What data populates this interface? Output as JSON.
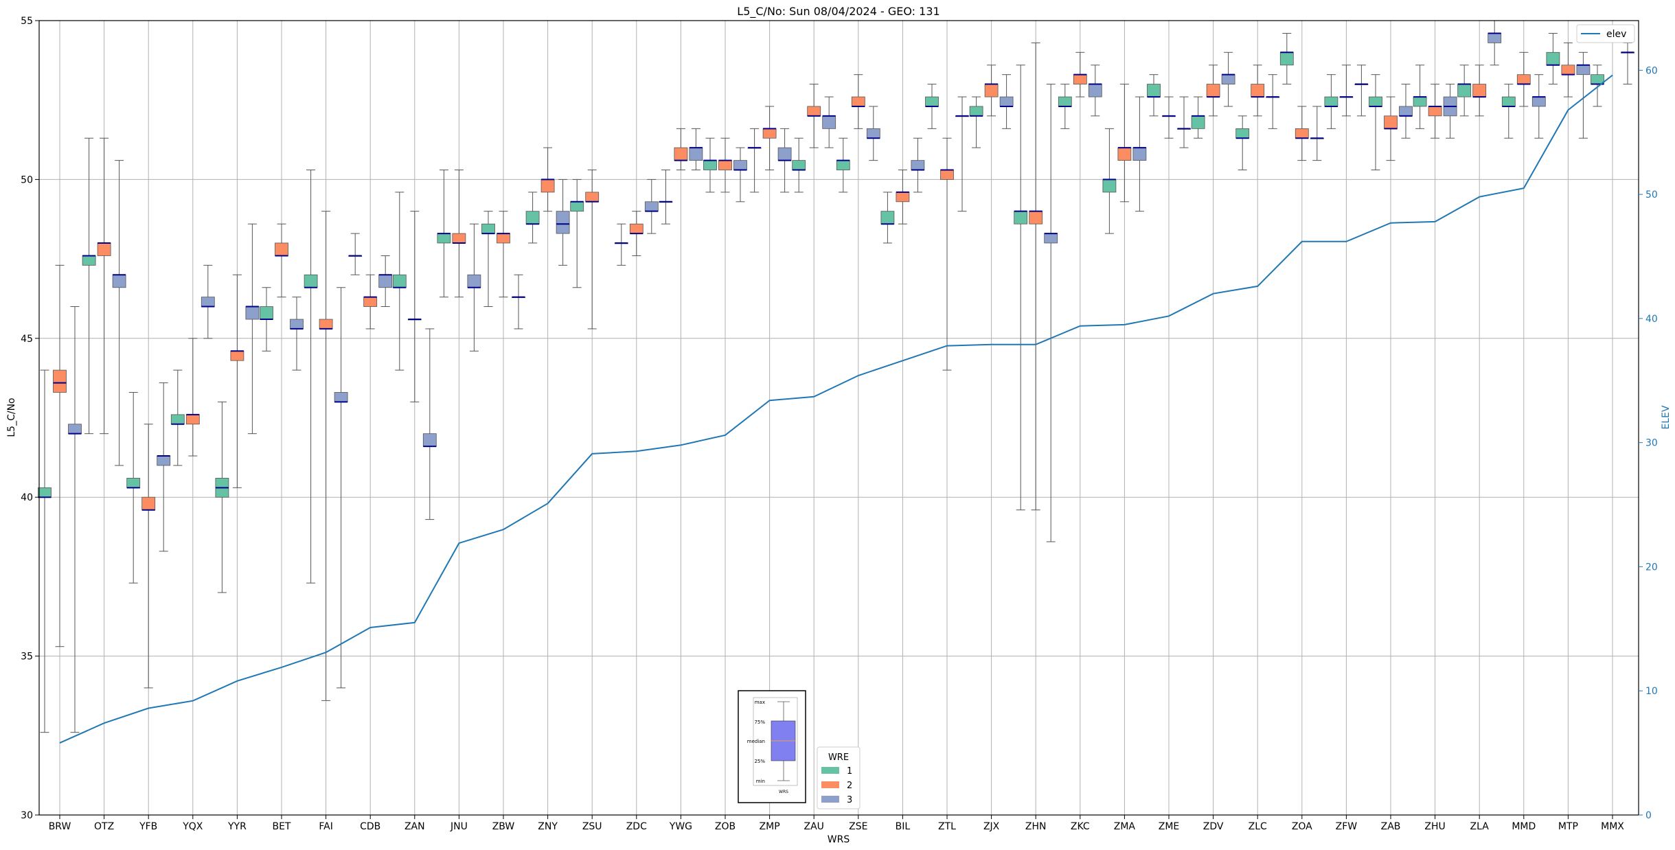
{
  "chart_data": {
    "type": "box",
    "title": "L5_C/No: Sun 08/04/2024 - GEO: 131",
    "xlabel": "WRS",
    "ylabel": "L5_C/No",
    "y2label": "ELEV",
    "ylim": [
      30,
      55
    ],
    "y2lim": [
      0,
      64
    ],
    "yticks": [
      30,
      35,
      40,
      45,
      50,
      55
    ],
    "y2ticks": [
      0,
      10,
      20,
      30,
      40,
      50,
      60
    ],
    "grid": true,
    "categories": [
      "BRW",
      "OTZ",
      "YFB",
      "YQX",
      "YYR",
      "BET",
      "FAI",
      "CDB",
      "ZAN",
      "JNU",
      "ZBW",
      "ZNY",
      "ZSU",
      "ZDC",
      "YWG",
      "ZOB",
      "ZMP",
      "ZAU",
      "ZSE",
      "BIL",
      "ZTL",
      "ZJX",
      "ZHN",
      "ZKC",
      "ZMA",
      "ZME",
      "ZDV",
      "ZLC",
      "ZOA",
      "ZFW",
      "ZAB",
      "ZHU",
      "ZLA",
      "MMD",
      "MTP",
      "MMX"
    ],
    "legend": {
      "title": "WRE",
      "placement": "bottom-center",
      "items": [
        {
          "label": "1",
          "color": "#66c2a5"
        },
        {
          "label": "2",
          "color": "#fc8d62"
        },
        {
          "label": "3",
          "color": "#8da0cb"
        }
      ]
    },
    "line_legend": {
      "label": "elev",
      "color": "#1f77b4",
      "placement": "top-right"
    },
    "inset_key": {
      "labels": [
        "max",
        "75%",
        "median",
        "25%",
        "min"
      ],
      "xlabel": "WRS"
    },
    "boxes": [
      {
        "cat": "BRW",
        "wre": 1,
        "min": 32.6,
        "q1": 40.0,
        "med": 40.0,
        "q3": 40.3,
        "max": 44.0
      },
      {
        "cat": "BRW",
        "wre": 2,
        "min": 35.3,
        "q1": 43.3,
        "med": 43.6,
        "q3": 44.0,
        "max": 47.3
      },
      {
        "cat": "BRW",
        "wre": 3,
        "min": 32.6,
        "q1": 42.0,
        "med": 42.0,
        "q3": 42.3,
        "max": 46.0
      },
      {
        "cat": "OTZ",
        "wre": 1,
        "min": 42.0,
        "q1": 47.3,
        "med": 47.6,
        "q3": 47.6,
        "max": 51.3
      },
      {
        "cat": "OTZ",
        "wre": 2,
        "min": 42.0,
        "q1": 47.6,
        "med": 48.0,
        "q3": 48.0,
        "max": 51.3
      },
      {
        "cat": "OTZ",
        "wre": 3,
        "min": 41.0,
        "q1": 46.6,
        "med": 47.0,
        "q3": 47.0,
        "max": 50.6
      },
      {
        "cat": "YFB",
        "wre": 1,
        "min": 37.3,
        "q1": 40.3,
        "med": 40.3,
        "q3": 40.6,
        "max": 43.3
      },
      {
        "cat": "YFB",
        "wre": 2,
        "min": 34.0,
        "q1": 39.6,
        "med": 39.6,
        "q3": 40.0,
        "max": 42.3
      },
      {
        "cat": "YFB",
        "wre": 3,
        "min": 38.3,
        "q1": 41.0,
        "med": 41.3,
        "q3": 41.3,
        "max": 43.6
      },
      {
        "cat": "YQX",
        "wre": 1,
        "min": 41.0,
        "q1": 42.3,
        "med": 42.3,
        "q3": 42.6,
        "max": 44.0
      },
      {
        "cat": "YQX",
        "wre": 2,
        "min": 41.3,
        "q1": 42.3,
        "med": 42.6,
        "q3": 42.6,
        "max": 45.0
      },
      {
        "cat": "YQX",
        "wre": 3,
        "min": 45.0,
        "q1": 46.0,
        "med": 46.0,
        "q3": 46.3,
        "max": 47.3
      },
      {
        "cat": "YYR",
        "wre": 1,
        "min": 37.0,
        "q1": 40.0,
        "med": 40.3,
        "q3": 40.6,
        "max": 43.0
      },
      {
        "cat": "YYR",
        "wre": 2,
        "min": 40.3,
        "q1": 44.3,
        "med": 44.6,
        "q3": 44.6,
        "max": 47.0
      },
      {
        "cat": "YYR",
        "wre": 3,
        "min": 42.0,
        "q1": 45.6,
        "med": 46.0,
        "q3": 46.0,
        "max": 48.6
      },
      {
        "cat": "BET",
        "wre": 1,
        "min": 44.6,
        "q1": 45.6,
        "med": 45.6,
        "q3": 46.0,
        "max": 46.6
      },
      {
        "cat": "BET",
        "wre": 2,
        "min": 46.3,
        "q1": 47.6,
        "med": 47.6,
        "q3": 48.0,
        "max": 48.6
      },
      {
        "cat": "BET",
        "wre": 3,
        "min": 44.0,
        "q1": 45.3,
        "med": 45.3,
        "q3": 45.6,
        "max": 46.3
      },
      {
        "cat": "FAI",
        "wre": 1,
        "min": 37.3,
        "q1": 46.6,
        "med": 46.6,
        "q3": 47.0,
        "max": 50.3
      },
      {
        "cat": "FAI",
        "wre": 2,
        "min": 33.6,
        "q1": 45.3,
        "med": 45.3,
        "q3": 45.6,
        "max": 49.0
      },
      {
        "cat": "FAI",
        "wre": 3,
        "min": 34.0,
        "q1": 43.0,
        "med": 43.0,
        "q3": 43.3,
        "max": 46.6
      },
      {
        "cat": "CDB",
        "wre": 1,
        "min": 47.0,
        "q1": 47.6,
        "med": 47.6,
        "q3": 47.6,
        "max": 48.3
      },
      {
        "cat": "CDB",
        "wre": 2,
        "min": 45.3,
        "q1": 46.0,
        "med": 46.3,
        "q3": 46.3,
        "max": 47.0
      },
      {
        "cat": "CDB",
        "wre": 3,
        "min": 46.0,
        "q1": 46.6,
        "med": 47.0,
        "q3": 47.0,
        "max": 47.6
      },
      {
        "cat": "ZAN",
        "wre": 1,
        "min": 44.0,
        "q1": 46.6,
        "med": 46.6,
        "q3": 47.0,
        "max": 49.6
      },
      {
        "cat": "ZAN",
        "wre": 2,
        "min": 43.0,
        "q1": 45.6,
        "med": 45.6,
        "q3": 45.6,
        "max": 49.0
      },
      {
        "cat": "ZAN",
        "wre": 3,
        "min": 39.3,
        "q1": 41.6,
        "med": 41.6,
        "q3": 42.0,
        "max": 45.3
      },
      {
        "cat": "JNU",
        "wre": 1,
        "min": 46.3,
        "q1": 48.0,
        "med": 48.3,
        "q3": 48.3,
        "max": 50.3
      },
      {
        "cat": "JNU",
        "wre": 2,
        "min": 46.3,
        "q1": 48.0,
        "med": 48.0,
        "q3": 48.3,
        "max": 50.3
      },
      {
        "cat": "JNU",
        "wre": 3,
        "min": 44.6,
        "q1": 46.6,
        "med": 46.6,
        "q3": 47.0,
        "max": 48.6
      },
      {
        "cat": "ZBW",
        "wre": 1,
        "min": 46.0,
        "q1": 48.3,
        "med": 48.3,
        "q3": 48.6,
        "max": 49.0
      },
      {
        "cat": "ZBW",
        "wre": 2,
        "min": 46.3,
        "q1": 48.0,
        "med": 48.3,
        "q3": 48.3,
        "max": 49.0
      },
      {
        "cat": "ZBW",
        "wre": 3,
        "min": 45.3,
        "q1": 46.3,
        "med": 46.3,
        "q3": 46.3,
        "max": 47.0
      },
      {
        "cat": "ZNY",
        "wre": 1,
        "min": 48.0,
        "q1": 48.6,
        "med": 48.6,
        "q3": 49.0,
        "max": 49.6
      },
      {
        "cat": "ZNY",
        "wre": 2,
        "min": 49.0,
        "q1": 49.6,
        "med": 50.0,
        "q3": 50.0,
        "max": 51.0
      },
      {
        "cat": "ZNY",
        "wre": 3,
        "min": 47.3,
        "q1": 48.3,
        "med": 48.6,
        "q3": 49.0,
        "max": 50.0
      },
      {
        "cat": "ZSU",
        "wre": 1,
        "min": 46.6,
        "q1": 49.0,
        "med": 49.3,
        "q3": 49.3,
        "max": 50.0
      },
      {
        "cat": "ZSU",
        "wre": 2,
        "min": 45.3,
        "q1": 49.3,
        "med": 49.3,
        "q3": 49.6,
        "max": 50.3
      },
      {
        "cat": "ZDC",
        "wre": 1,
        "min": 47.3,
        "q1": 48.0,
        "med": 48.0,
        "q3": 48.0,
        "max": 48.6
      },
      {
        "cat": "ZDC",
        "wre": 2,
        "min": 47.6,
        "q1": 48.3,
        "med": 48.3,
        "q3": 48.6,
        "max": 49.0
      },
      {
        "cat": "ZDC",
        "wre": 3,
        "min": 48.3,
        "q1": 49.0,
        "med": 49.0,
        "q3": 49.3,
        "max": 50.0
      },
      {
        "cat": "YWG",
        "wre": 1,
        "min": 48.6,
        "q1": 49.3,
        "med": 49.3,
        "q3": 49.3,
        "max": 50.3
      },
      {
        "cat": "YWG",
        "wre": 2,
        "min": 50.3,
        "q1": 50.6,
        "med": 50.6,
        "q3": 51.0,
        "max": 51.6
      },
      {
        "cat": "YWG",
        "wre": 3,
        "min": 50.3,
        "q1": 50.6,
        "med": 51.0,
        "q3": 51.0,
        "max": 51.6
      },
      {
        "cat": "ZOB",
        "wre": 1,
        "min": 49.6,
        "q1": 50.3,
        "med": 50.6,
        "q3": 50.6,
        "max": 51.3
      },
      {
        "cat": "ZOB",
        "wre": 2,
        "min": 49.6,
        "q1": 50.3,
        "med": 50.6,
        "q3": 50.6,
        "max": 51.3
      },
      {
        "cat": "ZOB",
        "wre": 3,
        "min": 49.3,
        "q1": 50.3,
        "med": 50.3,
        "q3": 50.6,
        "max": 51.0
      },
      {
        "cat": "ZMP",
        "wre": 1,
        "min": 49.6,
        "q1": 51.0,
        "med": 51.0,
        "q3": 51.0,
        "max": 51.6
      },
      {
        "cat": "ZMP",
        "wre": 2,
        "min": 50.3,
        "q1": 51.3,
        "med": 51.6,
        "q3": 51.6,
        "max": 52.3
      },
      {
        "cat": "ZMP",
        "wre": 3,
        "min": 49.6,
        "q1": 50.6,
        "med": 50.6,
        "q3": 51.0,
        "max": 51.6
      },
      {
        "cat": "ZAU",
        "wre": 1,
        "min": 49.6,
        "q1": 50.3,
        "med": 50.3,
        "q3": 50.6,
        "max": 51.3
      },
      {
        "cat": "ZAU",
        "wre": 2,
        "min": 51.0,
        "q1": 52.0,
        "med": 52.0,
        "q3": 52.3,
        "max": 53.0
      },
      {
        "cat": "ZAU",
        "wre": 3,
        "min": 51.0,
        "q1": 51.6,
        "med": 52.0,
        "q3": 52.0,
        "max": 52.6
      },
      {
        "cat": "ZSE",
        "wre": 1,
        "min": 49.6,
        "q1": 50.3,
        "med": 50.6,
        "q3": 50.6,
        "max": 51.3
      },
      {
        "cat": "ZSE",
        "wre": 2,
        "min": 51.6,
        "q1": 52.3,
        "med": 52.3,
        "q3": 52.6,
        "max": 53.3
      },
      {
        "cat": "ZSE",
        "wre": 3,
        "min": 50.6,
        "q1": 51.3,
        "med": 51.3,
        "q3": 51.6,
        "max": 52.3
      },
      {
        "cat": "BIL",
        "wre": 1,
        "min": 48.0,
        "q1": 48.6,
        "med": 48.6,
        "q3": 49.0,
        "max": 49.6
      },
      {
        "cat": "BIL",
        "wre": 2,
        "min": 48.6,
        "q1": 49.3,
        "med": 49.6,
        "q3": 49.6,
        "max": 50.3
      },
      {
        "cat": "BIL",
        "wre": 3,
        "min": 49.6,
        "q1": 50.3,
        "med": 50.3,
        "q3": 50.6,
        "max": 51.3
      },
      {
        "cat": "ZTL",
        "wre": 1,
        "min": 51.6,
        "q1": 52.3,
        "med": 52.3,
        "q3": 52.6,
        "max": 53.0
      },
      {
        "cat": "ZTL",
        "wre": 2,
        "min": 44.0,
        "q1": 50.0,
        "med": 50.3,
        "q3": 50.3,
        "max": 51.3
      },
      {
        "cat": "ZTL",
        "wre": 3,
        "min": 49.0,
        "q1": 52.0,
        "med": 52.0,
        "q3": 52.0,
        "max": 52.6
      },
      {
        "cat": "ZJX",
        "wre": 1,
        "min": 51.0,
        "q1": 52.0,
        "med": 52.0,
        "q3": 52.3,
        "max": 52.6
      },
      {
        "cat": "ZJX",
        "wre": 2,
        "min": 52.0,
        "q1": 52.6,
        "med": 53.0,
        "q3": 53.0,
        "max": 53.6
      },
      {
        "cat": "ZJX",
        "wre": 3,
        "min": 51.6,
        "q1": 52.3,
        "med": 52.3,
        "q3": 52.6,
        "max": 53.3
      },
      {
        "cat": "ZHN",
        "wre": 1,
        "min": 39.6,
        "q1": 48.6,
        "med": 49.0,
        "q3": 49.0,
        "max": 53.6
      },
      {
        "cat": "ZHN",
        "wre": 2,
        "min": 39.6,
        "q1": 48.6,
        "med": 49.0,
        "q3": 49.0,
        "max": 54.3
      },
      {
        "cat": "ZHN",
        "wre": 3,
        "min": 38.6,
        "q1": 48.0,
        "med": 48.3,
        "q3": 48.3,
        "max": 53.0
      },
      {
        "cat": "ZKC",
        "wre": 1,
        "min": 51.6,
        "q1": 52.3,
        "med": 52.3,
        "q3": 52.6,
        "max": 53.0
      },
      {
        "cat": "ZKC",
        "wre": 2,
        "min": 52.6,
        "q1": 53.0,
        "med": 53.3,
        "q3": 53.3,
        "max": 54.0
      },
      {
        "cat": "ZKC",
        "wre": 3,
        "min": 52.0,
        "q1": 52.6,
        "med": 53.0,
        "q3": 53.0,
        "max": 53.6
      },
      {
        "cat": "ZMA",
        "wre": 1,
        "min": 48.3,
        "q1": 49.6,
        "med": 50.0,
        "q3": 50.0,
        "max": 51.6
      },
      {
        "cat": "ZMA",
        "wre": 2,
        "min": 49.3,
        "q1": 50.6,
        "med": 51.0,
        "q3": 51.0,
        "max": 53.0
      },
      {
        "cat": "ZMA",
        "wre": 3,
        "min": 49.0,
        "q1": 50.6,
        "med": 51.0,
        "q3": 51.0,
        "max": 52.6
      },
      {
        "cat": "ZME",
        "wre": 1,
        "min": 52.0,
        "q1": 52.6,
        "med": 52.6,
        "q3": 53.0,
        "max": 53.3
      },
      {
        "cat": "ZME",
        "wre": 2,
        "min": 51.3,
        "q1": 52.0,
        "med": 52.0,
        "q3": 52.0,
        "max": 52.6
      },
      {
        "cat": "ZME",
        "wre": 3,
        "min": 51.0,
        "q1": 51.6,
        "med": 51.6,
        "q3": 51.6,
        "max": 52.6
      },
      {
        "cat": "ZDV",
        "wre": 1,
        "min": 51.3,
        "q1": 51.6,
        "med": 52.0,
        "q3": 52.0,
        "max": 52.6
      },
      {
        "cat": "ZDV",
        "wre": 2,
        "min": 52.0,
        "q1": 52.6,
        "med": 52.6,
        "q3": 53.0,
        "max": 53.6
      },
      {
        "cat": "ZDV",
        "wre": 3,
        "min": 52.3,
        "q1": 53.0,
        "med": 53.3,
        "q3": 53.3,
        "max": 54.0
      },
      {
        "cat": "ZLC",
        "wre": 1,
        "min": 50.3,
        "q1": 51.3,
        "med": 51.3,
        "q3": 51.6,
        "max": 52.0
      },
      {
        "cat": "ZLC",
        "wre": 2,
        "min": 52.0,
        "q1": 52.6,
        "med": 52.6,
        "q3": 53.0,
        "max": 53.6
      },
      {
        "cat": "ZLC",
        "wre": 3,
        "min": 51.6,
        "q1": 52.6,
        "med": 52.6,
        "q3": 52.6,
        "max": 53.3
      },
      {
        "cat": "ZOA",
        "wre": 1,
        "min": 53.0,
        "q1": 53.6,
        "med": 54.0,
        "q3": 54.0,
        "max": 54.6
      },
      {
        "cat": "ZOA",
        "wre": 2,
        "min": 50.6,
        "q1": 51.3,
        "med": 51.3,
        "q3": 51.6,
        "max": 52.3
      },
      {
        "cat": "ZOA",
        "wre": 3,
        "min": 50.6,
        "q1": 51.3,
        "med": 51.3,
        "q3": 51.3,
        "max": 52.3
      },
      {
        "cat": "ZFW",
        "wre": 1,
        "min": 51.6,
        "q1": 52.3,
        "med": 52.3,
        "q3": 52.6,
        "max": 53.3
      },
      {
        "cat": "ZFW",
        "wre": 2,
        "min": 52.0,
        "q1": 52.6,
        "med": 52.6,
        "q3": 52.6,
        "max": 53.6
      },
      {
        "cat": "ZFW",
        "wre": 3,
        "min": 52.0,
        "q1": 53.0,
        "med": 53.0,
        "q3": 53.0,
        "max": 53.6
      },
      {
        "cat": "ZAB",
        "wre": 1,
        "min": 50.3,
        "q1": 52.3,
        "med": 52.3,
        "q3": 52.6,
        "max": 53.3
      },
      {
        "cat": "ZAB",
        "wre": 2,
        "min": 50.6,
        "q1": 51.6,
        "med": 51.6,
        "q3": 52.0,
        "max": 52.6
      },
      {
        "cat": "ZAB",
        "wre": 3,
        "min": 51.3,
        "q1": 52.0,
        "med": 52.0,
        "q3": 52.3,
        "max": 53.0
      },
      {
        "cat": "ZHU",
        "wre": 1,
        "min": 51.6,
        "q1": 52.3,
        "med": 52.6,
        "q3": 52.6,
        "max": 53.6
      },
      {
        "cat": "ZHU",
        "wre": 2,
        "min": 51.3,
        "q1": 52.0,
        "med": 52.3,
        "q3": 52.3,
        "max": 53.0
      },
      {
        "cat": "ZHU",
        "wre": 3,
        "min": 51.3,
        "q1": 52.0,
        "med": 52.3,
        "q3": 52.6,
        "max": 53.0
      },
      {
        "cat": "ZLA",
        "wre": 1,
        "min": 52.0,
        "q1": 52.6,
        "med": 53.0,
        "q3": 53.0,
        "max": 53.6
      },
      {
        "cat": "ZLA",
        "wre": 2,
        "min": 52.0,
        "q1": 52.6,
        "med": 52.6,
        "q3": 53.0,
        "max": 53.6
      },
      {
        "cat": "ZLA",
        "wre": 3,
        "min": 53.6,
        "q1": 54.3,
        "med": 54.6,
        "q3": 54.6,
        "max": 55.0
      },
      {
        "cat": "MMD",
        "wre": 1,
        "min": 51.3,
        "q1": 52.3,
        "med": 52.3,
        "q3": 52.6,
        "max": 53.0
      },
      {
        "cat": "MMD",
        "wre": 2,
        "min": 52.3,
        "q1": 53.0,
        "med": 53.0,
        "q3": 53.3,
        "max": 54.0
      },
      {
        "cat": "MMD",
        "wre": 3,
        "min": 51.3,
        "q1": 52.3,
        "med": 52.6,
        "q3": 52.6,
        "max": 53.3
      },
      {
        "cat": "MTP",
        "wre": 1,
        "min": 53.0,
        "q1": 53.6,
        "med": 53.6,
        "q3": 54.0,
        "max": 54.6
      },
      {
        "cat": "MTP",
        "wre": 2,
        "min": 52.6,
        "q1": 53.3,
        "med": 53.3,
        "q3": 53.6,
        "max": 54.3
      },
      {
        "cat": "MTP",
        "wre": 3,
        "min": 51.3,
        "q1": 53.3,
        "med": 53.6,
        "q3": 53.6,
        "max": 54.0
      },
      {
        "cat": "MMX",
        "wre": 1,
        "min": 52.3,
        "q1": 53.0,
        "med": 53.0,
        "q3": 53.3,
        "max": 53.6
      },
      {
        "cat": "MMX",
        "wre": 3,
        "min": 53.0,
        "q1": 54.0,
        "med": 54.0,
        "q3": 54.0,
        "max": 54.3
      }
    ],
    "elev_series": {
      "name": "elev",
      "values": [
        5.8,
        7.4,
        8.6,
        9.2,
        10.8,
        11.9,
        13.1,
        15.1,
        15.5,
        21.9,
        23.0,
        25.1,
        29.1,
        29.3,
        29.8,
        30.6,
        33.4,
        33.7,
        35.4,
        36.6,
        37.8,
        37.9,
        37.9,
        39.4,
        39.5,
        40.2,
        42.0,
        42.6,
        46.2,
        46.2,
        47.7,
        47.8,
        49.8,
        50.5,
        56.8,
        59.6
      ]
    }
  }
}
